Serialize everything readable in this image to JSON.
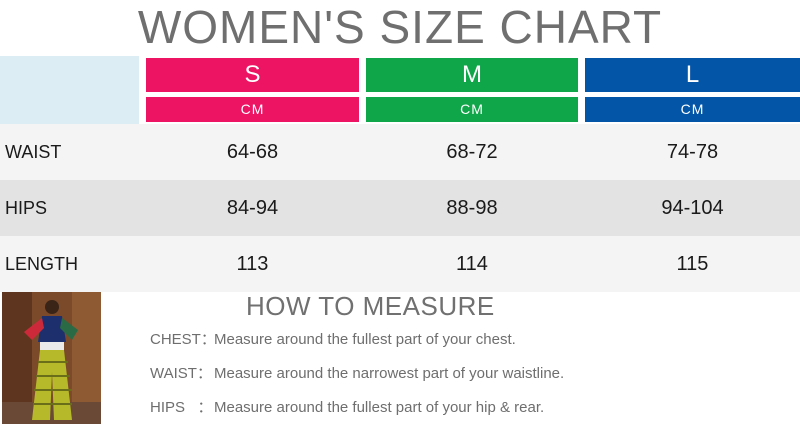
{
  "title": "WOMEN'S SIZE CHART",
  "sizes": [
    {
      "label": "S",
      "unit": "CM",
      "color": "#ec1463"
    },
    {
      "label": "M",
      "unit": "CM",
      "color": "#0fa64a"
    },
    {
      "label": "L",
      "unit": "CM",
      "color": "#0355a8"
    }
  ],
  "rows": [
    {
      "label": "WAIST",
      "values": [
        "64-68",
        "68-72",
        "74-78"
      ]
    },
    {
      "label": "HIPS",
      "values": [
        "84-94",
        "88-98",
        "94-104"
      ]
    },
    {
      "label": "LENGTH",
      "values": [
        "113",
        "114",
        "115"
      ]
    }
  ],
  "how_to_measure": {
    "title": "HOW TO MEASURE",
    "items": [
      {
        "key": "CHEST：",
        "text": "Measure around the fullest part of your chest."
      },
      {
        "key": "WAIST：",
        "text": "Measure around the narrowest part of your waistline."
      },
      {
        "key": "HIPS   ：",
        "text": "Measure around the fullest part of your hip & rear."
      }
    ]
  }
}
